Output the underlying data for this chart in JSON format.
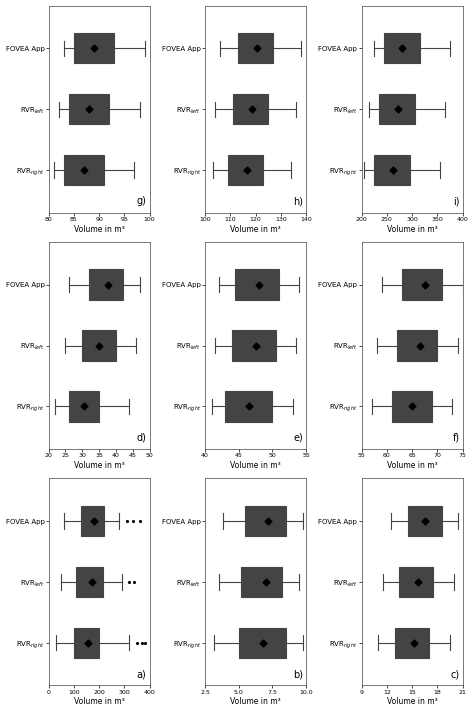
{
  "subplots": [
    {
      "label": "a)",
      "xlabel": "Volume in m³",
      "xlim": [
        0,
        400
      ],
      "xticks": [
        0,
        100,
        200,
        300,
        400
      ],
      "groups": [
        {
          "name": "RVR$_{right}$",
          "q1": 100,
          "median": 150,
          "q3": 200,
          "whislo": 30,
          "whishi": 320,
          "mean": 155,
          "fliers": [
            350,
            370,
            380
          ]
        },
        {
          "name": "RVR$_{left}$",
          "q1": 110,
          "median": 165,
          "q3": 215,
          "whislo": 50,
          "whishi": 290,
          "mean": 170,
          "fliers": [
            320,
            340
          ]
        },
        {
          "name": "FOVEA App",
          "q1": 130,
          "median": 175,
          "q3": 220,
          "whislo": 60,
          "whishi": 280,
          "mean": 180,
          "fliers": [
            310,
            335,
            360
          ]
        }
      ]
    },
    {
      "label": "b)",
      "xlabel": "Volume in m³",
      "xlim": [
        2.5,
        10.0
      ],
      "xticks": [
        2.5,
        5.0,
        7.5,
        10.0
      ],
      "groups": [
        {
          "name": "RVR$_{right}$",
          "q1": 5.0,
          "median": 6.5,
          "q3": 8.5,
          "whislo": 3.2,
          "whishi": 9.8,
          "mean": 6.8,
          "fliers": []
        },
        {
          "name": "RVR$_{left}$",
          "q1": 5.2,
          "median": 6.8,
          "q3": 8.2,
          "whislo": 3.5,
          "whishi": 9.5,
          "mean": 7.0,
          "fliers": []
        },
        {
          "name": "FOVEA App",
          "q1": 5.5,
          "median": 7.0,
          "q3": 8.5,
          "whislo": 3.8,
          "whishi": 9.8,
          "mean": 7.2,
          "fliers": []
        }
      ]
    },
    {
      "label": "c)",
      "xlabel": "Volume in m³",
      "xlim": [
        9,
        21
      ],
      "xticks": [
        9,
        12,
        15,
        18,
        21
      ],
      "groups": [
        {
          "name": "RVR$_{right}$",
          "q1": 13,
          "median": 15,
          "q3": 17,
          "whislo": 11,
          "whishi": 19.5,
          "mean": 15.2,
          "fliers": []
        },
        {
          "name": "RVR$_{left}$",
          "q1": 13.5,
          "median": 15.5,
          "q3": 17.5,
          "whislo": 11.5,
          "whishi": 20.0,
          "mean": 15.7,
          "fliers": []
        },
        {
          "name": "FOVEA App",
          "q1": 14.5,
          "median": 16.5,
          "q3": 18.5,
          "whislo": 12.5,
          "whishi": 20.5,
          "mean": 16.5,
          "fliers": []
        }
      ]
    },
    {
      "label": "d)",
      "xlabel": "Volume in m³",
      "xlim": [
        20,
        50
      ],
      "xticks": [
        20,
        25,
        30,
        35,
        40,
        45,
        50
      ],
      "groups": [
        {
          "name": "RVR$_{right}$",
          "q1": 26,
          "median": 30,
          "q3": 35,
          "whislo": 22,
          "whishi": 44,
          "mean": 30.5,
          "fliers": []
        },
        {
          "name": "RVR$_{left}$",
          "q1": 30,
          "median": 35,
          "q3": 40,
          "whislo": 25,
          "whishi": 46,
          "mean": 35.0,
          "fliers": []
        },
        {
          "name": "FOVEA App",
          "q1": 32,
          "median": 37,
          "q3": 42,
          "whislo": 26,
          "whishi": 47,
          "mean": 37.5,
          "fliers": []
        }
      ]
    },
    {
      "label": "e)",
      "xlabel": "Volume in m³",
      "xlim": [
        40,
        55
      ],
      "xticks": [
        40,
        45,
        50,
        55
      ],
      "groups": [
        {
          "name": "RVR$_{right}$",
          "q1": 43,
          "median": 46,
          "q3": 50,
          "whislo": 41,
          "whishi": 53,
          "mean": 46.5,
          "fliers": []
        },
        {
          "name": "RVR$_{left}$",
          "q1": 44,
          "median": 47,
          "q3": 50.5,
          "whislo": 41.5,
          "whishi": 53.5,
          "mean": 47.5,
          "fliers": []
        },
        {
          "name": "FOVEA App",
          "q1": 44.5,
          "median": 48,
          "q3": 51,
          "whislo": 42,
          "whishi": 54,
          "mean": 48.0,
          "fliers": []
        }
      ]
    },
    {
      "label": "f)",
      "xlabel": "Volume in m³",
      "xlim": [
        55,
        75
      ],
      "xticks": [
        55,
        60,
        65,
        70,
        75
      ],
      "groups": [
        {
          "name": "RVR$_{right}$",
          "q1": 61,
          "median": 65,
          "q3": 69,
          "whislo": 57,
          "whishi": 73,
          "mean": 65.0,
          "fliers": []
        },
        {
          "name": "RVR$_{left}$",
          "q1": 62,
          "median": 66,
          "q3": 70,
          "whislo": 58,
          "whishi": 74,
          "mean": 66.5,
          "fliers": []
        },
        {
          "name": "FOVEA App",
          "q1": 63,
          "median": 67,
          "q3": 71,
          "whislo": 59,
          "whishi": 75,
          "mean": 67.5,
          "fliers": []
        }
      ]
    },
    {
      "label": "g)",
      "xlabel": "Volume in m³",
      "xlim": [
        80,
        100
      ],
      "xticks": [
        80,
        85,
        90,
        95,
        100
      ],
      "groups": [
        {
          "name": "RVR$_{right}$",
          "q1": 83,
          "median": 87,
          "q3": 91,
          "whislo": 81,
          "whishi": 97,
          "mean": 87.0,
          "fliers": []
        },
        {
          "name": "RVR$_{left}$",
          "q1": 84,
          "median": 88,
          "q3": 92,
          "whislo": 82,
          "whishi": 98,
          "mean": 88.0,
          "fliers": []
        },
        {
          "name": "FOVEA App",
          "q1": 85,
          "median": 89,
          "q3": 93,
          "whislo": 83,
          "whishi": 99,
          "mean": 89.0,
          "fliers": []
        }
      ]
    },
    {
      "label": "h)",
      "xlabel": "Volume in m³",
      "xlim": [
        100,
        140
      ],
      "xticks": [
        100,
        110,
        120,
        130,
        140
      ],
      "groups": [
        {
          "name": "RVR$_{right}$",
          "q1": 109,
          "median": 116,
          "q3": 123,
          "whislo": 103,
          "whishi": 134,
          "mean": 116.5,
          "fliers": []
        },
        {
          "name": "RVR$_{left}$",
          "q1": 111,
          "median": 118,
          "q3": 125,
          "whislo": 104,
          "whishi": 136,
          "mean": 118.5,
          "fliers": []
        },
        {
          "name": "FOVEA App",
          "q1": 113,
          "median": 120,
          "q3": 127,
          "whislo": 106,
          "whishi": 138,
          "mean": 120.5,
          "fliers": []
        }
      ]
    },
    {
      "label": "i)",
      "xlabel": "Volume in m³",
      "xlim": [
        200,
        400
      ],
      "xticks": [
        200,
        250,
        300,
        350,
        400
      ],
      "groups": [
        {
          "name": "RVR$_{right}$",
          "q1": 225,
          "median": 258,
          "q3": 295,
          "whislo": 205,
          "whishi": 355,
          "mean": 262,
          "fliers": []
        },
        {
          "name": "RVR$_{left}$",
          "q1": 235,
          "median": 268,
          "q3": 305,
          "whislo": 215,
          "whishi": 365,
          "mean": 272,
          "fliers": []
        },
        {
          "name": "FOVEA App",
          "q1": 245,
          "median": 278,
          "q3": 315,
          "whislo": 225,
          "whishi": 375,
          "mean": 280,
          "fliers": []
        }
      ]
    }
  ],
  "median_color": "#444444",
  "mean_marker": "D",
  "mean_color": "black",
  "whisker_color": "#444444",
  "cap_color": "#444444",
  "flier_color": "black",
  "linewidth": 0.8,
  "panel_order": [
    6,
    7,
    8,
    3,
    4,
    5,
    0,
    1,
    2
  ]
}
